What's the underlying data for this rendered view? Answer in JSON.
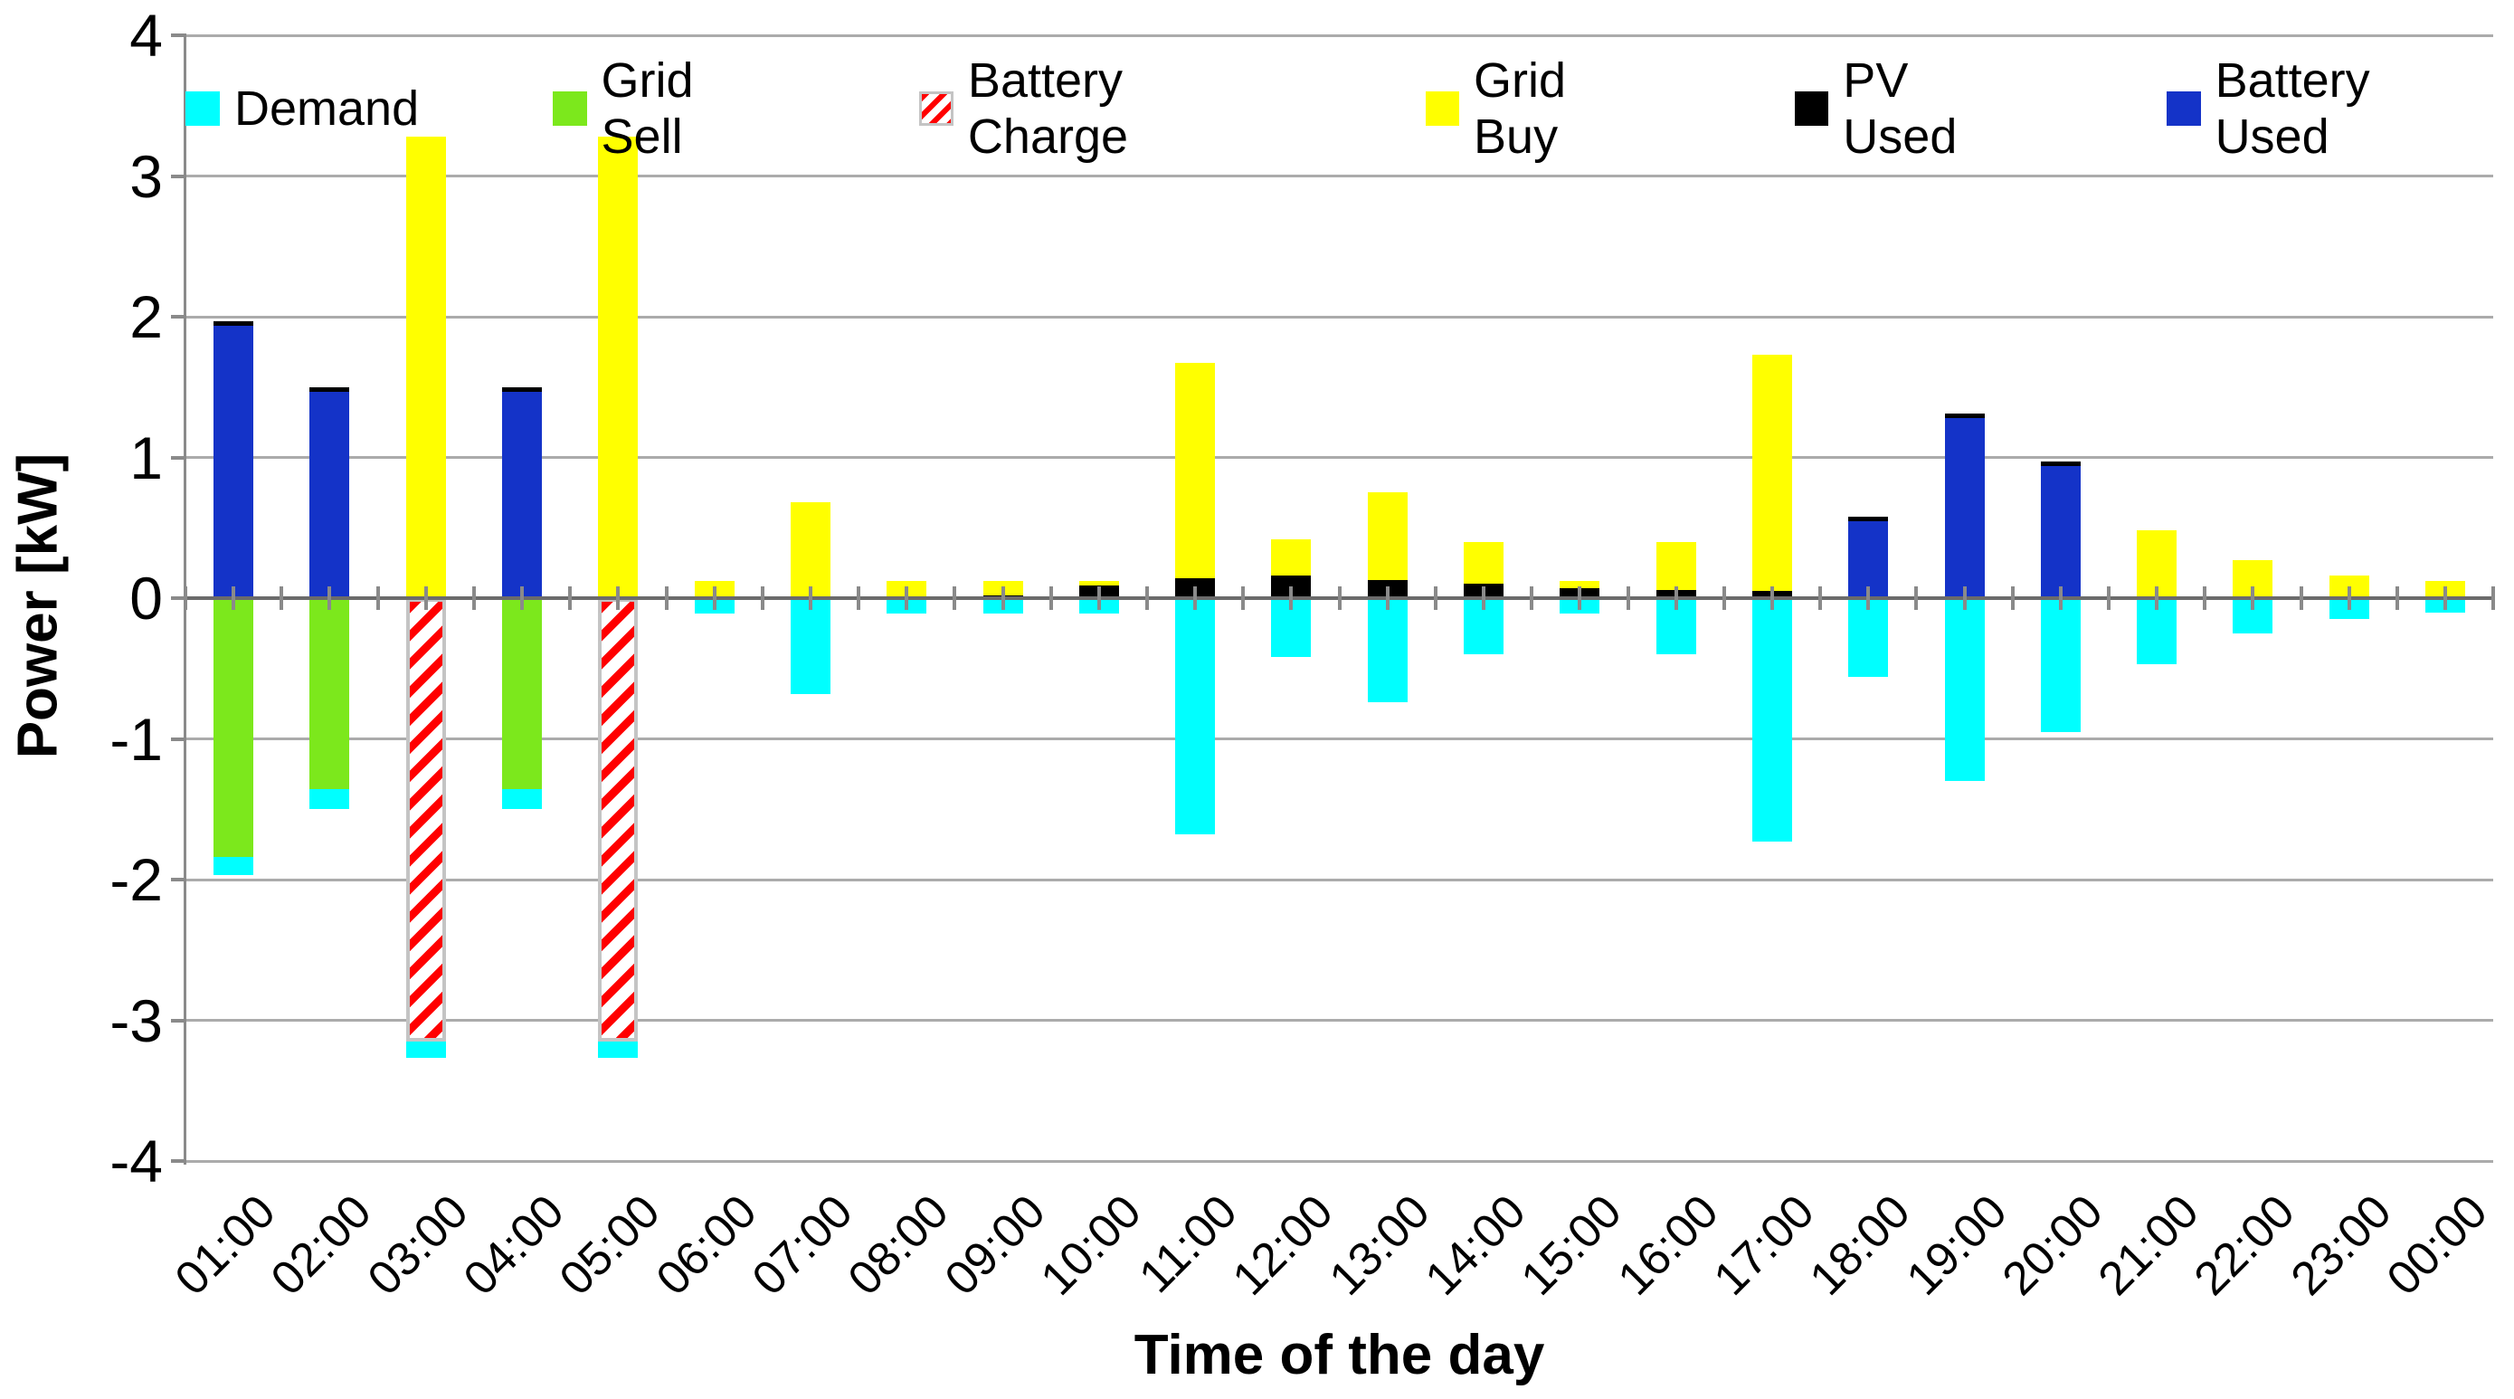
{
  "chart_data": {
    "type": "bar",
    "stacked": true,
    "title": "",
    "x_label": "Time of the day",
    "y_label": "Power [kW]",
    "ylim": [
      -4,
      4
    ],
    "yticks": [
      4,
      3,
      2,
      1,
      0,
      -1,
      -2,
      -3,
      -4
    ],
    "grid": true,
    "legend_position": "top",
    "categories": [
      "01:00",
      "02:00",
      "03:00",
      "04:00",
      "05:00",
      "06:00",
      "07:00",
      "08:00",
      "09:00",
      "10:00",
      "11:00",
      "12:00",
      "13:00",
      "14:00",
      "15:00",
      "16:00",
      "17:00",
      "18:00",
      "19:00",
      "20:00",
      "21:00",
      "22:00",
      "23:00",
      "00:00"
    ],
    "series": [
      {
        "name": "Demand",
        "color": "#00ffff",
        "pattern": "solid",
        "values": [
          -0.13,
          -0.14,
          -0.12,
          -0.14,
          -0.12,
          -0.11,
          -0.68,
          -0.11,
          -0.11,
          -0.11,
          -1.68,
          -0.42,
          -0.74,
          -0.4,
          -0.11,
          -0.4,
          -1.73,
          -0.56,
          -1.3,
          -0.95,
          -0.47,
          -0.25,
          -0.15,
          -0.1
        ]
      },
      {
        "name": "Grid Sell",
        "color": "#7ce81c",
        "pattern": "solid",
        "values": [
          -1.84,
          -1.36,
          0,
          -1.36,
          0,
          0,
          0,
          0,
          0,
          0,
          0,
          0,
          0,
          0,
          0,
          0,
          0,
          0,
          0,
          0,
          0,
          0,
          0,
          0
        ]
      },
      {
        "name": "Battery Charge",
        "color": "#ff0000",
        "pattern": "diagonal-hatch",
        "values": [
          0,
          0,
          -3.15,
          0,
          -3.15,
          0,
          0,
          0,
          0,
          0,
          0,
          0,
          0,
          0,
          0,
          0,
          0,
          0,
          0,
          0,
          0,
          0,
          0,
          0
        ]
      },
      {
        "name": "Grid Buy",
        "color": "#ffff00",
        "pattern": "solid",
        "values": [
          0,
          0,
          3.28,
          0,
          3.28,
          0.12,
          0.68,
          0.12,
          0.1,
          0.03,
          1.53,
          0.26,
          0.62,
          0.3,
          0.05,
          0.34,
          1.68,
          0,
          0,
          0,
          0.48,
          0.27,
          0.16,
          0.12
        ]
      },
      {
        "name": "PV Used",
        "color": "#000000",
        "pattern": "solid",
        "values": [
          0,
          0,
          0,
          0,
          0,
          0,
          0,
          0,
          0.02,
          0.09,
          0.14,
          0.16,
          0.13,
          0.1,
          0.07,
          0.06,
          0.05,
          0,
          0,
          0,
          0,
          0,
          0,
          0
        ]
      },
      {
        "name": "Battery Used",
        "color": "#1433c8",
        "pattern": "solid",
        "values": [
          1.97,
          1.5,
          0,
          1.5,
          0,
          0,
          0,
          0,
          0,
          0,
          0,
          0,
          0,
          0,
          0,
          0,
          0,
          0.58,
          1.31,
          0.97,
          0,
          0,
          0,
          0
        ]
      }
    ],
    "stack_order_positive": [
      "PV Used",
      "Grid Buy",
      "Battery Used"
    ],
    "stack_order_negative": [
      "Grid Sell",
      "Battery Charge",
      "Demand"
    ]
  }
}
